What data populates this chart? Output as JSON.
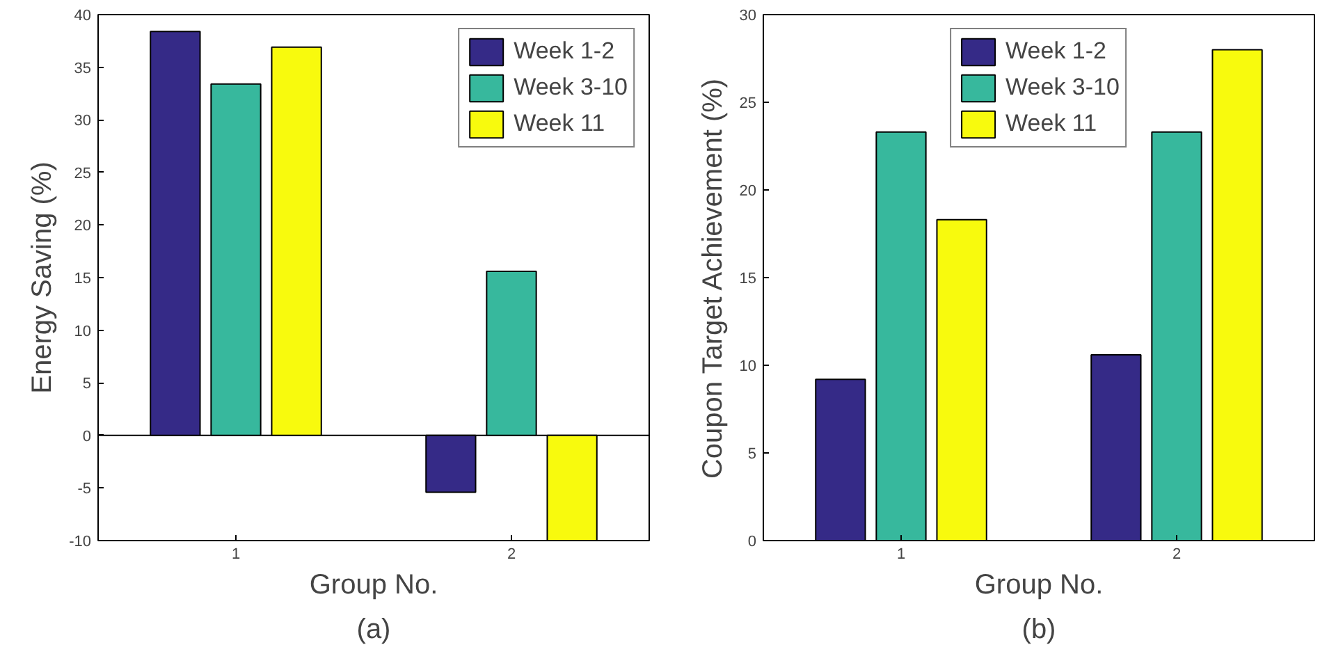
{
  "chart_data": [
    {
      "type": "bar",
      "categories": [
        "1",
        "2"
      ],
      "xlabel": "Group No.",
      "ylabel": "Energy Saving (%)",
      "ylim": [
        -10,
        40
      ],
      "yticks": [
        -10,
        -5,
        0,
        5,
        10,
        15,
        20,
        25,
        30,
        35,
        40
      ],
      "grid": false,
      "legend": "top right",
      "annotations": [
        "(a)"
      ],
      "ref_lines": [
        {
          "axis": "y",
          "value": 0,
          "color": "#000000"
        }
      ],
      "series": [
        {
          "name": "Week 1-2",
          "color": "#352a87",
          "values": [
            38.4,
            -5.4
          ]
        },
        {
          "name": "Week 3-10",
          "color": "#37b89d",
          "values": [
            33.4,
            15.6
          ]
        },
        {
          "name": "Week 11",
          "color": "#f8fa0d",
          "values": [
            36.9,
            -10
          ]
        }
      ]
    },
    {
      "type": "bar",
      "categories": [
        "1",
        "2"
      ],
      "xlabel": "Group No.",
      "ylabel": "Coupon Target Achievement (%)",
      "ylim": [
        0,
        30
      ],
      "yticks": [
        0,
        5,
        10,
        15,
        20,
        25,
        30
      ],
      "grid": false,
      "legend": "top",
      "annotations": [
        "(b)"
      ],
      "series": [
        {
          "name": "Week 1-2",
          "color": "#352a87",
          "values": [
            9.2,
            10.6
          ]
        },
        {
          "name": "Week 3-10",
          "color": "#37b89d",
          "values": [
            23.3,
            23.3
          ]
        },
        {
          "name": "Week 11",
          "color": "#f8fa0d",
          "values": [
            18.3,
            28.0
          ]
        }
      ]
    }
  ]
}
